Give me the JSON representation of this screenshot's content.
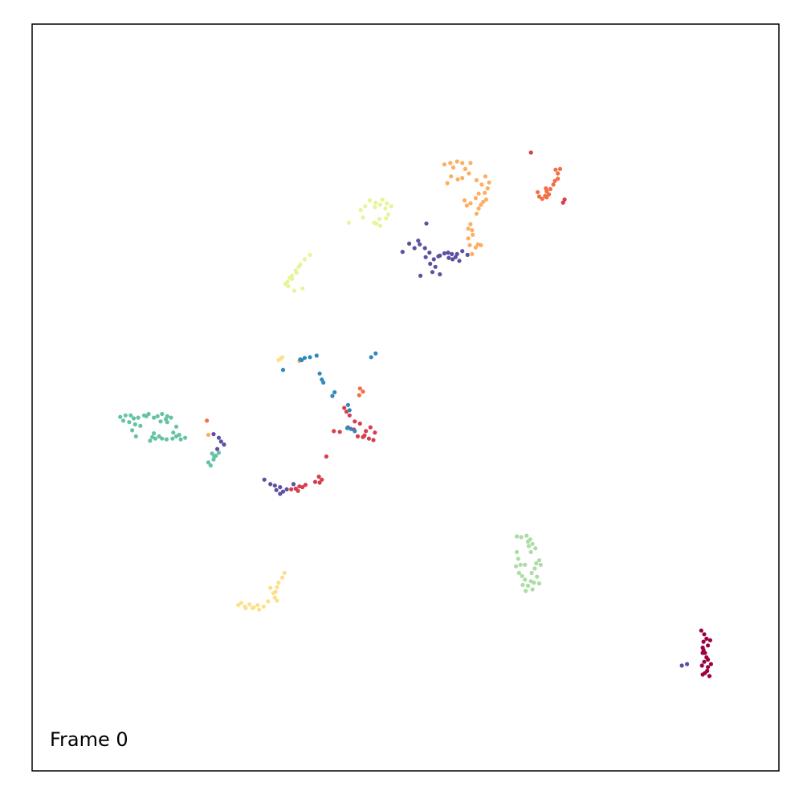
{
  "chart_data": {
    "type": "scatter",
    "annotation": "Frame 0",
    "xlim": [
      0,
      100
    ],
    "ylim": [
      0,
      100
    ],
    "grid": false,
    "legend": "none",
    "series": [
      {
        "color": "#9e0142",
        "points": [
          [
            89.6,
            18.8
          ],
          [
            90.0,
            18.3
          ],
          [
            90.3,
            17.7
          ],
          [
            89.9,
            17.3
          ],
          [
            90.5,
            16.8
          ],
          [
            89.9,
            16.2
          ],
          [
            90.3,
            15.2
          ],
          [
            90.0,
            14.6
          ],
          [
            90.5,
            13.9
          ],
          [
            89.7,
            14.1
          ],
          [
            90.8,
            17.5
          ],
          [
            89.8,
            15.8
          ],
          [
            90.5,
            14.9
          ],
          [
            90.1,
            13.1
          ],
          [
            90.7,
            12.7
          ],
          [
            89.8,
            16.5
          ],
          [
            90.1,
            15.8
          ],
          [
            90.9,
            14.3
          ],
          [
            89.8,
            12.9
          ],
          [
            90.4,
            13.4
          ]
        ]
      },
      {
        "color": "#d53e4f",
        "points": [
          [
            66.8,
            82.8
          ],
          [
            71.3,
            76.5
          ],
          [
            71.1,
            76.1
          ],
          [
            41.8,
            48.6
          ],
          [
            42.1,
            48.1
          ],
          [
            42.5,
            47.6
          ],
          [
            43.2,
            46.8
          ],
          [
            43.1,
            45.7
          ],
          [
            43.6,
            44.8
          ],
          [
            44.5,
            44.9
          ],
          [
            45.1,
            44.5
          ],
          [
            45.7,
            44.3
          ],
          [
            45.9,
            45.3
          ],
          [
            44.3,
            44.7
          ],
          [
            41.2,
            45.4
          ],
          [
            40.4,
            45.5
          ],
          [
            42.3,
            46.0
          ],
          [
            39.4,
            42.1
          ],
          [
            38.8,
            39.0
          ],
          [
            38.5,
            38.6
          ],
          [
            36.6,
            38.3
          ],
          [
            35.8,
            38.1
          ],
          [
            35.3,
            37.8
          ],
          [
            34.7,
            37.7
          ],
          [
            35.6,
            37.5
          ],
          [
            36.2,
            38.0
          ],
          [
            38.4,
            39.4
          ],
          [
            37.9,
            38.7
          ],
          [
            43.9,
            46.5
          ],
          [
            45.3,
            46.0
          ],
          [
            44.7,
            45.5
          ]
        ]
      },
      {
        "color": "#f46d43",
        "points": [
          [
            70.1,
            80.5
          ],
          [
            70.4,
            80.0
          ],
          [
            70.7,
            80.6
          ],
          [
            70.4,
            79.3
          ],
          [
            70.0,
            79.0
          ],
          [
            69.8,
            78.5
          ],
          [
            69.4,
            77.9
          ],
          [
            68.9,
            77.6
          ],
          [
            68.7,
            77.0
          ],
          [
            68.3,
            76.6
          ],
          [
            67.9,
            76.9
          ],
          [
            67.7,
            77.5
          ],
          [
            68.8,
            78.0
          ],
          [
            68.9,
            76.8
          ],
          [
            69.2,
            77.2
          ],
          [
            43.8,
            50.3
          ],
          [
            44.3,
            50.8
          ],
          [
            43.9,
            51.2
          ],
          [
            23.4,
            46.9
          ]
        ]
      },
      {
        "color": "#fdae61",
        "points": [
          [
            55.2,
            81.2
          ],
          [
            56.0,
            81.4
          ],
          [
            56.9,
            81.6
          ],
          [
            57.6,
            81.4
          ],
          [
            56.4,
            80.8
          ],
          [
            58.0,
            80.6
          ],
          [
            58.5,
            80.0
          ],
          [
            56.1,
            79.6
          ],
          [
            57.0,
            79.2
          ],
          [
            57.6,
            79.4
          ],
          [
            55.6,
            78.7
          ],
          [
            59.5,
            79.1
          ],
          [
            60.2,
            78.5
          ],
          [
            61.0,
            78.0
          ],
          [
            60.6,
            77.4
          ],
          [
            59.8,
            77.3
          ],
          [
            59.4,
            76.7
          ],
          [
            60.4,
            76.2
          ],
          [
            58.7,
            76.0
          ],
          [
            57.9,
            76.4
          ],
          [
            58.2,
            75.7
          ],
          [
            59.8,
            75.3
          ],
          [
            60.8,
            76.5
          ],
          [
            60.1,
            75.8
          ],
          [
            59.5,
            74.6
          ],
          [
            58.7,
            73.2
          ],
          [
            58.4,
            72.6
          ],
          [
            58.9,
            72.4
          ],
          [
            59.0,
            71.8
          ],
          [
            58.4,
            71.3
          ],
          [
            58.6,
            70.4
          ],
          [
            58.9,
            69.2
          ],
          [
            59.4,
            70.1
          ],
          [
            59.7,
            70.5
          ],
          [
            60.1,
            70.4
          ],
          [
            35.8,
            54.9
          ],
          [
            23.6,
            45.0
          ],
          [
            61.2,
            78.8
          ],
          [
            60.7,
            79.6
          ],
          [
            58.7,
            81.4
          ]
        ]
      },
      {
        "color": "#fee08b",
        "points": [
          [
            33.8,
            26.5
          ],
          [
            33.5,
            25.9
          ],
          [
            33.0,
            25.2
          ],
          [
            32.8,
            24.6
          ],
          [
            32.3,
            23.8
          ],
          [
            32.5,
            23.2
          ],
          [
            32.8,
            22.8
          ],
          [
            31.6,
            22.7
          ],
          [
            31.0,
            22.0
          ],
          [
            30.4,
            21.6
          ],
          [
            29.7,
            21.9
          ],
          [
            29.1,
            22.3
          ],
          [
            28.5,
            22.0
          ],
          [
            28.0,
            22.5
          ],
          [
            27.6,
            22.2
          ],
          [
            28.6,
            21.8
          ],
          [
            29.5,
            21.8
          ],
          [
            30.2,
            22.2
          ],
          [
            31.9,
            24.5
          ],
          [
            32.6,
            24.0
          ],
          [
            33.3,
            55.2
          ],
          [
            33.0,
            55.0
          ],
          [
            33.5,
            55.4
          ]
        ]
      },
      {
        "color": "#e6f598",
        "points": [
          [
            45.2,
            76.4
          ],
          [
            46.0,
            76.1
          ],
          [
            46.9,
            76.5
          ],
          [
            47.5,
            76.0
          ],
          [
            48.1,
            75.6
          ],
          [
            47.3,
            75.3
          ],
          [
            46.6,
            75.8
          ],
          [
            45.9,
            75.5
          ],
          [
            44.6,
            75.6
          ],
          [
            44.0,
            75.1
          ],
          [
            47.7,
            74.5
          ],
          [
            46.5,
            73.9
          ],
          [
            45.8,
            73.4
          ],
          [
            46.6,
            73.0
          ],
          [
            47.4,
            74.0
          ],
          [
            46.1,
            73.3
          ],
          [
            44.3,
            74.1
          ],
          [
            42.4,
            73.4
          ],
          [
            37.2,
            69.1
          ],
          [
            36.5,
            68.5
          ],
          [
            35.9,
            67.8
          ],
          [
            35.3,
            67.0
          ],
          [
            34.8,
            66.3
          ],
          [
            34.5,
            66.0
          ],
          [
            33.9,
            65.2
          ],
          [
            34.3,
            64.9
          ],
          [
            35.4,
            66.7
          ],
          [
            35.7,
            67.5
          ],
          [
            36.2,
            64.6
          ],
          [
            35.1,
            64.3
          ],
          [
            34.2,
            65.5
          ],
          [
            34.8,
            65.9
          ]
        ]
      },
      {
        "color": "#abdda4",
        "points": [
          [
            64.9,
            31.4
          ],
          [
            65.5,
            31.3
          ],
          [
            66.2,
            31.5
          ],
          [
            66.7,
            31.0
          ],
          [
            67.0,
            30.4
          ],
          [
            67.4,
            29.8
          ],
          [
            66.8,
            29.3
          ],
          [
            66.5,
            30.1
          ],
          [
            67.9,
            28.2
          ],
          [
            68.1,
            27.6
          ],
          [
            67.3,
            27.1
          ],
          [
            66.9,
            26.5
          ],
          [
            67.6,
            26.0
          ],
          [
            66.8,
            25.4
          ],
          [
            66.0,
            25.6
          ],
          [
            65.6,
            26.1
          ],
          [
            65.2,
            26.5
          ],
          [
            65.7,
            24.9
          ],
          [
            66.4,
            24.8
          ],
          [
            67.2,
            25.2
          ],
          [
            67.9,
            25.1
          ],
          [
            66.1,
            24.1
          ],
          [
            67.0,
            24.3
          ],
          [
            65.4,
            27.6
          ],
          [
            65.1,
            28.4
          ],
          [
            64.8,
            27.4
          ],
          [
            64.9,
            29.3
          ],
          [
            66.4,
            30.7
          ],
          [
            66.0,
            27.6
          ],
          [
            67.5,
            27.8
          ]
        ]
      },
      {
        "color": "#66c2a5",
        "points": [
          [
            11.8,
            47.4
          ],
          [
            12.5,
            47.6
          ],
          [
            13.2,
            47.6
          ],
          [
            13.6,
            47.2
          ],
          [
            14.2,
            47.3
          ],
          [
            15.0,
            47.6
          ],
          [
            15.6,
            47.8
          ],
          [
            15.3,
            47.5
          ],
          [
            16.3,
            47.3
          ],
          [
            16.8,
            47.5
          ],
          [
            17.4,
            47.8
          ],
          [
            18.1,
            47.5
          ],
          [
            18.6,
            47.3
          ],
          [
            17.9,
            47.1
          ],
          [
            17.2,
            46.8
          ],
          [
            12.2,
            46.9
          ],
          [
            13.0,
            46.7
          ],
          [
            13.8,
            46.4
          ],
          [
            14.5,
            46.2
          ],
          [
            13.4,
            45.6
          ],
          [
            13.9,
            44.8
          ],
          [
            16.1,
            44.7
          ],
          [
            15.8,
            44.2
          ],
          [
            17.4,
            44.5
          ],
          [
            18.0,
            44.4
          ],
          [
            18.8,
            44.5
          ],
          [
            19.3,
            44.8
          ],
          [
            19.9,
            44.4
          ],
          [
            20.5,
            44.6
          ],
          [
            19.7,
            45.0
          ],
          [
            18.9,
            45.3
          ],
          [
            19.3,
            46.1
          ],
          [
            18.1,
            46.7
          ],
          [
            17.0,
            44.8
          ],
          [
            16.5,
            44.5
          ],
          [
            24.1,
            42.5
          ],
          [
            24.6,
            42.2
          ],
          [
            25.0,
            42.6
          ],
          [
            24.3,
            41.7
          ],
          [
            23.6,
            41.3
          ],
          [
            23.9,
            40.9
          ],
          [
            24.4,
            42.1
          ],
          [
            16.3,
            45.2
          ]
        ]
      },
      {
        "color": "#3288bd",
        "points": [
          [
            35.9,
            55.1
          ],
          [
            36.5,
            55.3
          ],
          [
            37.2,
            55.4
          ],
          [
            36.1,
            55.0
          ],
          [
            38.1,
            55.6
          ],
          [
            38.5,
            53.2
          ],
          [
            38.8,
            52.4
          ],
          [
            39.0,
            52.0
          ],
          [
            40.5,
            50.7
          ],
          [
            40.2,
            50.2
          ],
          [
            42.3,
            49.0
          ],
          [
            42.5,
            48.3
          ],
          [
            33.6,
            53.7
          ],
          [
            46.0,
            55.9
          ],
          [
            45.4,
            55.4
          ],
          [
            43.2,
            45.5
          ],
          [
            42.7,
            45.8
          ],
          [
            42.2,
            45.9
          ]
        ]
      },
      {
        "color": "#5e4fa2",
        "points": [
          [
            52.8,
            73.3
          ],
          [
            50.5,
            70.6
          ],
          [
            51.2,
            70.0
          ],
          [
            51.9,
            70.5
          ],
          [
            52.6,
            70.0
          ],
          [
            53.2,
            69.4
          ],
          [
            52.7,
            68.8
          ],
          [
            53.8,
            68.5
          ],
          [
            54.4,
            68.9
          ],
          [
            55.2,
            69.3
          ],
          [
            55.8,
            68.7
          ],
          [
            56.3,
            68.5
          ],
          [
            56.9,
            69.2
          ],
          [
            57.6,
            69.6
          ],
          [
            58.3,
            69.1
          ],
          [
            57.2,
            68.3
          ],
          [
            56.2,
            69.2
          ],
          [
            54.6,
            69.0
          ],
          [
            53.3,
            67.9
          ],
          [
            54.0,
            67.5
          ],
          [
            53.6,
            66.8
          ],
          [
            52.0,
            66.3
          ],
          [
            54.6,
            66.5
          ],
          [
            49.6,
            69.5
          ],
          [
            51.7,
            71.0
          ],
          [
            55.7,
            69.4
          ],
          [
            56.7,
            68.8
          ],
          [
            24.3,
            45.1
          ],
          [
            25.0,
            44.6
          ],
          [
            25.3,
            44.1
          ],
          [
            25.7,
            43.7
          ],
          [
            24.8,
            43.1
          ],
          [
            31.1,
            39.0
          ],
          [
            31.9,
            38.4
          ],
          [
            32.5,
            38.2
          ],
          [
            33.2,
            38.0
          ],
          [
            33.6,
            37.4
          ],
          [
            33.2,
            37.1
          ],
          [
            32.7,
            37.6
          ],
          [
            34.1,
            37.7
          ],
          [
            87.7,
            14.3
          ],
          [
            87.0,
            14.1
          ],
          [
            35.0,
            38.4
          ]
        ]
      }
    ]
  }
}
